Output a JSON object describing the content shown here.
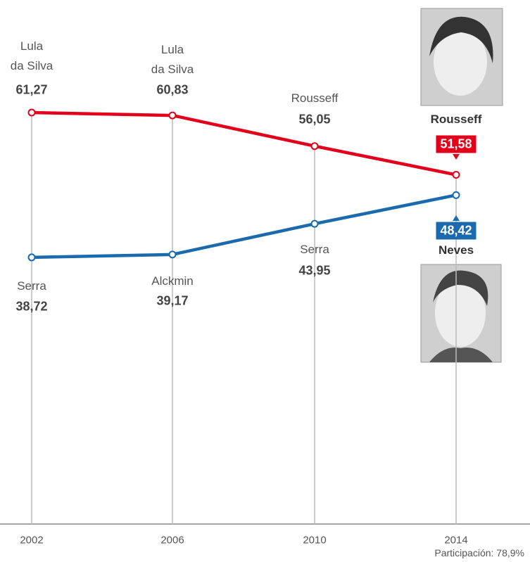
{
  "chart_data": {
    "type": "line",
    "categories": [
      "2002",
      "2006",
      "2010",
      "2014"
    ],
    "series": [
      {
        "color": "#e3001b",
        "values": [
          61.27,
          60.83,
          56.05,
          51.58
        ],
        "value_labels": [
          "61,27",
          "60,83",
          "56,05",
          "51,58"
        ],
        "point_labels": [
          "Lula\nda Silva",
          "Lula\nda Silva",
          "Rousseff",
          "Rousseff"
        ]
      },
      {
        "color": "#1a6aad",
        "values": [
          38.72,
          39.17,
          43.95,
          48.42
        ],
        "value_labels": [
          "38,72",
          "39,17",
          "43,95",
          "48,42"
        ],
        "point_labels": [
          "Serra",
          "Alckmin",
          "Serra",
          "Neves"
        ]
      }
    ],
    "ylim": [
      -2.8,
      78.8
    ],
    "note": "Participación: 78,9%"
  }
}
